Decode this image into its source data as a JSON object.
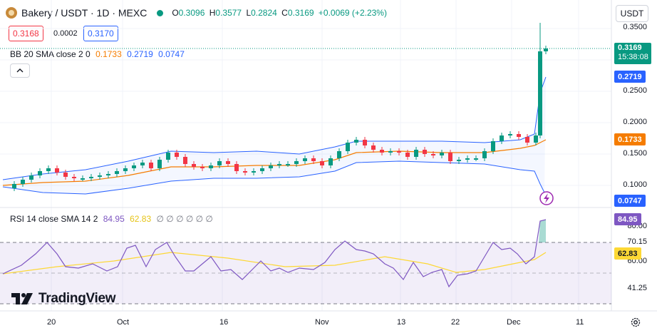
{
  "header": {
    "symbol": "Bakery / USDT · 1D · MEXC",
    "open_label": "O",
    "open": "0.3096",
    "high_label": "H",
    "high": "0.3577",
    "low_label": "L",
    "low": "0.2824",
    "close_label": "C",
    "close": "0.3169",
    "change": "+0.0069 (+2.23%)"
  },
  "price_boxes": {
    "sell": "0.3168",
    "spread": "0.0002",
    "buy": "0.3170"
  },
  "bb_legend": {
    "label": "BB 20 SMA close 2 0",
    "basis": "0.1733",
    "upper": "0.2719",
    "lower": "0.0747"
  },
  "rsi_legend": {
    "label": "RSI 14 close SMA 14 2",
    "rsi": "84.95",
    "sma": "62.83",
    "extras": "∅ ∅ ∅ ∅ ∅ ∅"
  },
  "currency_button": "USDT",
  "price_axis": {
    "ticks": [
      "0.3500",
      "0.2500",
      "0.2000",
      "0.1500",
      "0.1000"
    ]
  },
  "price_tags": {
    "last": "0.3169",
    "countdown": "15:38:08",
    "bb_upper": "0.2719",
    "bb_basis": "0.1733",
    "bb_lower": "0.0747"
  },
  "rsi_axis": {
    "ticks": [
      "80.00",
      "70.15",
      "60.00",
      "41.25"
    ]
  },
  "rsi_tags": {
    "rsi": "84.95",
    "sma": "62.83"
  },
  "time_axis": {
    "ticks": [
      "20",
      "Oct",
      "16",
      "Nov",
      "13",
      "22",
      "Dec",
      "11"
    ]
  },
  "branding": "TradingView",
  "icons": {
    "collapse": "chevron-up-icon",
    "settings": "gear-icon",
    "flash": "lightning-icon",
    "live": "live-dot-icon",
    "logo": "bakery-logo-icon"
  },
  "colors": {
    "up": "#089981",
    "down": "#f23645",
    "bb": "#2962ff",
    "basis": "#f57c00",
    "rsi": "#7e57c2",
    "rsi_sma": "#fdd835"
  }
}
